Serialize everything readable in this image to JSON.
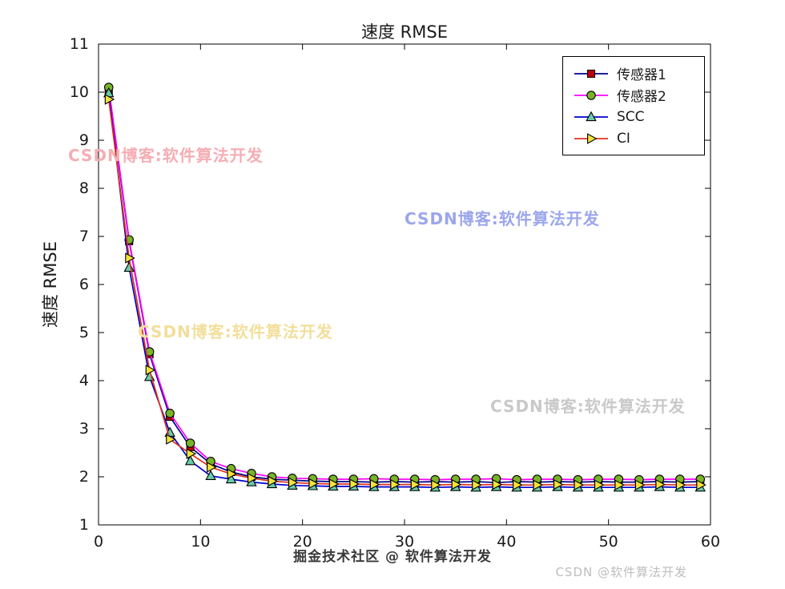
{
  "chart_data": {
    "type": "line",
    "title": "速度 RMSE",
    "xlabel": "",
    "ylabel": "速度 RMSE",
    "xlim": [
      0,
      60
    ],
    "ylim": [
      1,
      11
    ],
    "xticks": [
      0,
      10,
      20,
      30,
      40,
      50,
      60
    ],
    "yticks": [
      1,
      2,
      3,
      4,
      5,
      6,
      7,
      8,
      9,
      10,
      11
    ],
    "grid": false,
    "legend_position": "top-right",
    "x": [
      1,
      3,
      5,
      7,
      9,
      11,
      13,
      15,
      17,
      19,
      21,
      23,
      25,
      27,
      29,
      31,
      33,
      35,
      37,
      39,
      41,
      43,
      45,
      47,
      49,
      51,
      53,
      55,
      57,
      59
    ],
    "series": [
      {
        "name": "传感器1",
        "line_color": "#00008B",
        "marker": "square",
        "marker_fill": "#C00000",
        "values": [
          10.02,
          6.9,
          4.55,
          3.25,
          2.62,
          2.27,
          2.1,
          2.0,
          1.95,
          1.93,
          1.91,
          1.9,
          1.9,
          1.89,
          1.9,
          1.89,
          1.9,
          1.89,
          1.9,
          1.88,
          1.9,
          1.89,
          1.9,
          1.89,
          1.9,
          1.89,
          1.89,
          1.9,
          1.89,
          1.9
        ]
      },
      {
        "name": "传感器2",
        "line_color": "#FF00FF",
        "marker": "circle",
        "marker_fill": "#78B428",
        "values": [
          10.1,
          6.93,
          4.6,
          3.32,
          2.7,
          2.32,
          2.17,
          2.07,
          2.0,
          1.97,
          1.96,
          1.95,
          1.95,
          1.96,
          1.95,
          1.95,
          1.94,
          1.95,
          1.95,
          1.96,
          1.94,
          1.95,
          1.95,
          1.94,
          1.95,
          1.95,
          1.94,
          1.95,
          1.95,
          1.95
        ]
      },
      {
        "name": "SCC",
        "line_color": "#0000CD",
        "marker": "triangle-up",
        "marker_fill": "#66CDAA",
        "values": [
          9.98,
          6.35,
          4.08,
          2.92,
          2.33,
          2.02,
          1.95,
          1.89,
          1.85,
          1.82,
          1.81,
          1.8,
          1.8,
          1.79,
          1.79,
          1.79,
          1.78,
          1.79,
          1.78,
          1.79,
          1.78,
          1.78,
          1.79,
          1.78,
          1.78,
          1.78,
          1.78,
          1.79,
          1.78,
          1.78
        ]
      },
      {
        "name": "CI",
        "line_color": "#E03020",
        "marker": "triangle-right",
        "marker_fill": "#F2E33A",
        "values": [
          9.85,
          6.55,
          4.22,
          2.78,
          2.48,
          2.2,
          2.06,
          1.97,
          1.91,
          1.88,
          1.86,
          1.85,
          1.85,
          1.84,
          1.84,
          1.84,
          1.83,
          1.84,
          1.83,
          1.84,
          1.83,
          1.83,
          1.84,
          1.83,
          1.83,
          1.83,
          1.83,
          1.84,
          1.83,
          1.83
        ]
      }
    ]
  },
  "watermarks": [
    {
      "text": "CSDN博客:软件算法开发",
      "color": "#F5AEB4"
    },
    {
      "text": "CSDN博客:软件算法开发",
      "color": "#9BA6EC"
    },
    {
      "text": "CSDN博客:软件算法开发",
      "color": "#F2DF9C"
    },
    {
      "text": "CSDN博客:软件算法开发",
      "color": "#C9C9C9"
    }
  ],
  "footer": {
    "community_credit": "掘金技术社区 @ 软件算法开发",
    "csdn_credit": "CSDN @软件算法开发"
  }
}
